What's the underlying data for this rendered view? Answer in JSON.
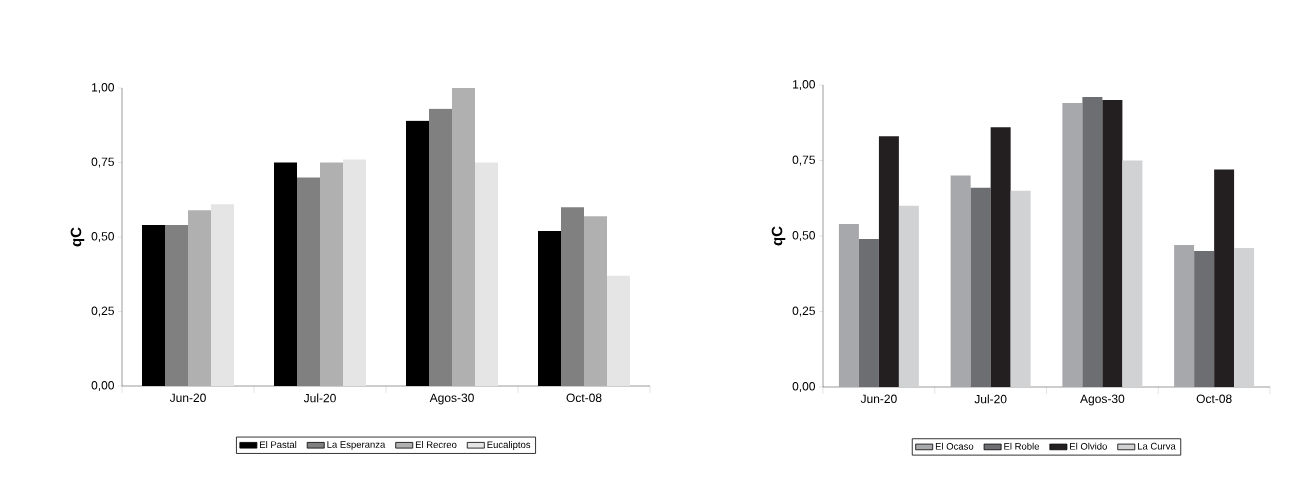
{
  "chart_data": [
    {
      "type": "bar",
      "ylabel": "qC",
      "categories": [
        "Jun-20",
        "Jul-20",
        "Agos-30",
        "Oct-08"
      ],
      "series": [
        {
          "name": "El Pastal",
          "color": "#000000",
          "values": [
            0.54,
            0.75,
            0.89,
            0.52
          ]
        },
        {
          "name": "La Esperanza",
          "color": "#808080",
          "values": [
            0.54,
            0.7,
            0.93,
            0.6
          ]
        },
        {
          "name": "El Recreo",
          "color": "#b0b0b0",
          "values": [
            0.59,
            0.75,
            1.0,
            0.57
          ]
        },
        {
          "name": "Eucaliptos",
          "color": "#e5e5e5",
          "values": [
            0.61,
            0.76,
            0.75,
            0.37
          ]
        }
      ],
      "ylim": [
        0,
        1
      ],
      "yticks": [
        {
          "value": 0,
          "label": "0,00"
        },
        {
          "value": 0.25,
          "label": "0,25"
        },
        {
          "value": 0.5,
          "label": "0,50"
        },
        {
          "value": 0.75,
          "label": "0,75"
        },
        {
          "value": 1,
          "label": "1,00"
        }
      ],
      "legend": "bottom",
      "grid": false
    },
    {
      "type": "bar",
      "ylabel": "qC",
      "categories": [
        "Jun-20",
        "Jul-20",
        "Agos-30",
        "Oct-08"
      ],
      "series": [
        {
          "name": "El Ocaso",
          "color": "#a7a8ab",
          "values": [
            0.54,
            0.7,
            0.94,
            0.47
          ]
        },
        {
          "name": "El Roble",
          "color": "#6d6e72",
          "values": [
            0.49,
            0.66,
            0.96,
            0.45
          ]
        },
        {
          "name": "El Olvido",
          "color": "#231f20",
          "values": [
            0.83,
            0.86,
            0.95,
            0.72
          ]
        },
        {
          "name": "La Curva",
          "color": "#d1d2d4",
          "values": [
            0.6,
            0.65,
            0.75,
            0.46
          ]
        }
      ],
      "ylim": [
        0,
        1
      ],
      "yticks": [
        {
          "value": 0,
          "label": "0,00"
        },
        {
          "value": 0.25,
          "label": "0,25"
        },
        {
          "value": 0.5,
          "label": "0,50"
        },
        {
          "value": 0.75,
          "label": "0,75"
        },
        {
          "value": 1,
          "label": "1,00"
        }
      ],
      "legend": "bottom",
      "grid": false
    }
  ]
}
